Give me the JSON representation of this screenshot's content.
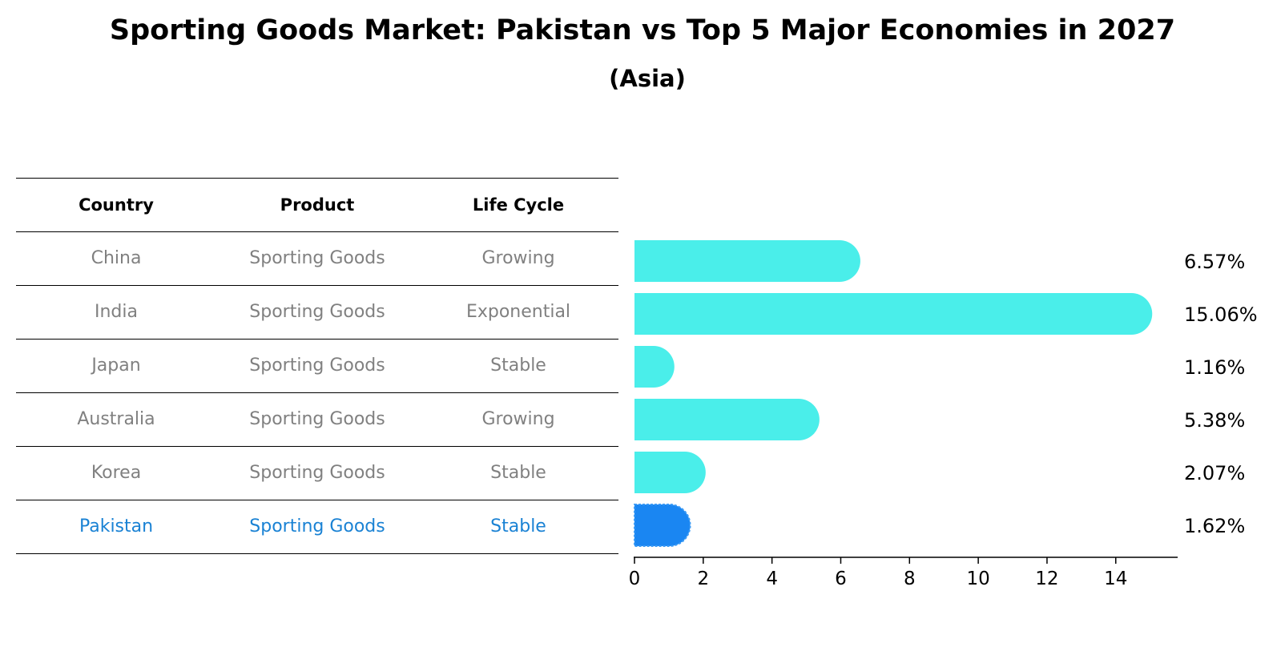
{
  "title": "Sporting Goods Market: Pakistan vs Top 5 Major Economies in 2027",
  "subtitle": "(Asia)",
  "table": {
    "headers": [
      "Country",
      "Product",
      "Life Cycle"
    ],
    "rows": [
      {
        "country": "China",
        "product": "Sporting Goods",
        "life_cycle": "Growing"
      },
      {
        "country": "India",
        "product": "Sporting Goods",
        "life_cycle": "Exponential"
      },
      {
        "country": "Japan",
        "product": "Sporting Goods",
        "life_cycle": "Stable"
      },
      {
        "country": "Australia",
        "product": "Sporting Goods",
        "life_cycle": "Growing"
      },
      {
        "country": "Korea",
        "product": "Sporting Goods",
        "life_cycle": "Stable"
      },
      {
        "country": "Pakistan",
        "product": "Sporting Goods",
        "life_cycle": "Stable"
      }
    ]
  },
  "colors": {
    "bar": "#4aeeea",
    "highlight_bar": "#1a86f2",
    "highlight_text": "#1a82d4",
    "muted_text": "#808080"
  },
  "chart_data": {
    "type": "bar",
    "orientation": "horizontal",
    "categories": [
      "China",
      "India",
      "Japan",
      "Australia",
      "Korea",
      "Pakistan"
    ],
    "values": [
      6.57,
      15.06,
      1.16,
      5.38,
      2.07,
      1.62
    ],
    "value_labels": [
      "6.57%",
      "15.06%",
      "1.16%",
      "5.38%",
      "2.07%",
      "1.62%"
    ],
    "highlight": "Pakistan",
    "xlim": [
      0,
      15.8
    ],
    "xticks": [
      0,
      2,
      4,
      6,
      8,
      10,
      12,
      14
    ],
    "grid": false
  }
}
